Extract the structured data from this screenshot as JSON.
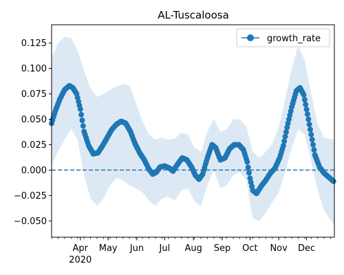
{
  "chart_data": {
    "type": "line",
    "title": "AL-Tuscaloosa",
    "xlabel": "",
    "ylabel": "",
    "x_range": [
      "2020-03-01",
      "2020-12-31"
    ],
    "ylim": [
      -0.066,
      0.143
    ],
    "y_ticks": [
      -0.05,
      -0.025,
      0.0,
      0.025,
      0.05,
      0.075,
      0.1,
      0.125
    ],
    "y_tick_labels": [
      "−0.050",
      "−0.025",
      "0.000",
      "0.025",
      "0.050",
      "0.075",
      "0.100",
      "0.125"
    ],
    "x_ticks": [
      {
        "date": "2020-04-01",
        "label": "Apr"
      },
      {
        "date": "2020-05-01",
        "label": "May"
      },
      {
        "date": "2020-06-01",
        "label": "Jun"
      },
      {
        "date": "2020-07-01",
        "label": "Jul"
      },
      {
        "date": "2020-08-01",
        "label": "Aug"
      },
      {
        "date": "2020-09-01",
        "label": "Sep"
      },
      {
        "date": "2020-10-01",
        "label": "Oct"
      },
      {
        "date": "2020-11-01",
        "label": "Nov"
      },
      {
        "date": "2020-12-01",
        "label": "Dec"
      }
    ],
    "year_label": {
      "date": "2020-04-01",
      "label": "2020"
    },
    "legend": {
      "position": "top-right",
      "entries": [
        "growth_rate"
      ]
    },
    "grid": false,
    "colors": {
      "series": "#1f77b4",
      "band": "#dce9f5",
      "reference": "#1f77b4"
    },
    "reference_line": {
      "y": 0.0,
      "style": "dashed"
    },
    "series": [
      {
        "name": "growth_rate",
        "anchors": [
          [
            "2020-03-01",
            0.046
          ],
          [
            "2020-03-05",
            0.058
          ],
          [
            "2020-03-10",
            0.07
          ],
          [
            "2020-03-15",
            0.079
          ],
          [
            "2020-03-20",
            0.083
          ],
          [
            "2020-03-24",
            0.081
          ],
          [
            "2020-03-28",
            0.075
          ],
          [
            "2020-04-01",
            0.06
          ],
          [
            "2020-04-05",
            0.038
          ],
          [
            "2020-04-10",
            0.024
          ],
          [
            "2020-04-15",
            0.016
          ],
          [
            "2020-04-20",
            0.017
          ],
          [
            "2020-04-25",
            0.024
          ],
          [
            "2020-04-30",
            0.032
          ],
          [
            "2020-05-05",
            0.04
          ],
          [
            "2020-05-10",
            0.045
          ],
          [
            "2020-05-15",
            0.048
          ],
          [
            "2020-05-20",
            0.046
          ],
          [
            "2020-05-25",
            0.038
          ],
          [
            "2020-05-30",
            0.026
          ],
          [
            "2020-06-04",
            0.017
          ],
          [
            "2020-06-09",
            0.01
          ],
          [
            "2020-06-14",
            0.001
          ],
          [
            "2020-06-18",
            -0.004
          ],
          [
            "2020-06-22",
            -0.002
          ],
          [
            "2020-06-26",
            0.003
          ],
          [
            "2020-07-01",
            0.004
          ],
          [
            "2020-07-06",
            0.002
          ],
          [
            "2020-07-10",
            -0.001
          ],
          [
            "2020-07-15",
            0.006
          ],
          [
            "2020-07-20",
            0.012
          ],
          [
            "2020-07-25",
            0.01
          ],
          [
            "2020-07-30",
            0.003
          ],
          [
            "2020-08-03",
            -0.005
          ],
          [
            "2020-08-07",
            -0.009
          ],
          [
            "2020-08-11",
            -0.004
          ],
          [
            "2020-08-16",
            0.012
          ],
          [
            "2020-08-21",
            0.025
          ],
          [
            "2020-08-25",
            0.022
          ],
          [
            "2020-08-30",
            0.01
          ],
          [
            "2020-09-04",
            0.012
          ],
          [
            "2020-09-09",
            0.021
          ],
          [
            "2020-09-14",
            0.025
          ],
          [
            "2020-09-19",
            0.025
          ],
          [
            "2020-09-24",
            0.02
          ],
          [
            "2020-09-28",
            0.008
          ],
          [
            "2020-10-01",
            -0.008
          ],
          [
            "2020-10-04",
            -0.02
          ],
          [
            "2020-10-08",
            -0.023
          ],
          [
            "2020-10-13",
            -0.016
          ],
          [
            "2020-10-18",
            -0.01
          ],
          [
            "2020-10-23",
            -0.003
          ],
          [
            "2020-10-28",
            0.002
          ],
          [
            "2020-11-02",
            0.012
          ],
          [
            "2020-11-06",
            0.024
          ],
          [
            "2020-11-10",
            0.042
          ],
          [
            "2020-11-15",
            0.062
          ],
          [
            "2020-11-20",
            0.078
          ],
          [
            "2020-11-24",
            0.081
          ],
          [
            "2020-11-28",
            0.074
          ],
          [
            "2020-12-02",
            0.055
          ],
          [
            "2020-12-06",
            0.035
          ],
          [
            "2020-12-10",
            0.015
          ],
          [
            "2020-12-15",
            0.003
          ],
          [
            "2020-12-20",
            -0.003
          ],
          [
            "2020-12-25",
            -0.007
          ],
          [
            "2020-12-30",
            -0.011
          ]
        ]
      }
    ],
    "band": {
      "upper": [
        [
          "2020-03-01",
          0.11
        ],
        [
          "2020-03-08",
          0.125
        ],
        [
          "2020-03-15",
          0.131
        ],
        [
          "2020-03-22",
          0.13
        ],
        [
          "2020-03-29",
          0.118
        ],
        [
          "2020-04-05",
          0.098
        ],
        [
          "2020-04-12",
          0.08
        ],
        [
          "2020-04-19",
          0.072
        ],
        [
          "2020-04-26",
          0.075
        ],
        [
          "2020-05-03",
          0.079
        ],
        [
          "2020-05-10",
          0.082
        ],
        [
          "2020-05-17",
          0.085
        ],
        [
          "2020-05-24",
          0.083
        ],
        [
          "2020-05-31",
          0.066
        ],
        [
          "2020-06-07",
          0.048
        ],
        [
          "2020-06-14",
          0.035
        ],
        [
          "2020-06-21",
          0.03
        ],
        [
          "2020-06-28",
          0.032
        ],
        [
          "2020-07-05",
          0.03
        ],
        [
          "2020-07-12",
          0.031
        ],
        [
          "2020-07-19",
          0.037
        ],
        [
          "2020-07-26",
          0.035
        ],
        [
          "2020-08-02",
          0.022
        ],
        [
          "2020-08-09",
          0.018
        ],
        [
          "2020-08-16",
          0.038
        ],
        [
          "2020-08-23",
          0.05
        ],
        [
          "2020-08-30",
          0.038
        ],
        [
          "2020-09-06",
          0.04
        ],
        [
          "2020-09-13",
          0.05
        ],
        [
          "2020-09-20",
          0.05
        ],
        [
          "2020-09-27",
          0.043
        ],
        [
          "2020-10-04",
          0.018
        ],
        [
          "2020-10-11",
          0.012
        ],
        [
          "2020-10-18",
          0.018
        ],
        [
          "2020-10-25",
          0.026
        ],
        [
          "2020-11-01",
          0.042
        ],
        [
          "2020-11-08",
          0.07
        ],
        [
          "2020-11-15",
          0.1
        ],
        [
          "2020-11-22",
          0.122
        ],
        [
          "2020-11-29",
          0.108
        ],
        [
          "2020-12-06",
          0.075
        ],
        [
          "2020-12-13",
          0.045
        ],
        [
          "2020-12-20",
          0.032
        ],
        [
          "2020-12-31",
          0.03
        ]
      ],
      "lower": [
        [
          "2020-03-01",
          0.005
        ],
        [
          "2020-03-08",
          0.018
        ],
        [
          "2020-03-15",
          0.03
        ],
        [
          "2020-03-22",
          0.04
        ],
        [
          "2020-03-29",
          0.03
        ],
        [
          "2020-04-05",
          -0.005
        ],
        [
          "2020-04-12",
          -0.028
        ],
        [
          "2020-04-19",
          -0.035
        ],
        [
          "2020-04-26",
          -0.028
        ],
        [
          "2020-05-03",
          -0.015
        ],
        [
          "2020-05-10",
          -0.008
        ],
        [
          "2020-05-17",
          -0.01
        ],
        [
          "2020-05-24",
          -0.015
        ],
        [
          "2020-05-31",
          -0.018
        ],
        [
          "2020-06-07",
          -0.022
        ],
        [
          "2020-06-14",
          -0.03
        ],
        [
          "2020-06-21",
          -0.035
        ],
        [
          "2020-06-28",
          -0.028
        ],
        [
          "2020-07-05",
          -0.026
        ],
        [
          "2020-07-12",
          -0.03
        ],
        [
          "2020-07-19",
          -0.02
        ],
        [
          "2020-07-26",
          -0.018
        ],
        [
          "2020-08-02",
          -0.03
        ],
        [
          "2020-08-09",
          -0.036
        ],
        [
          "2020-08-16",
          -0.015
        ],
        [
          "2020-08-23",
          0.0
        ],
        [
          "2020-08-30",
          -0.018
        ],
        [
          "2020-09-06",
          -0.015
        ],
        [
          "2020-09-13",
          -0.005
        ],
        [
          "2020-09-20",
          -0.002
        ],
        [
          "2020-09-27",
          -0.01
        ],
        [
          "2020-10-04",
          -0.048
        ],
        [
          "2020-10-11",
          -0.05
        ],
        [
          "2020-10-18",
          -0.042
        ],
        [
          "2020-10-25",
          -0.032
        ],
        [
          "2020-11-01",
          -0.022
        ],
        [
          "2020-11-08",
          -0.002
        ],
        [
          "2020-11-15",
          0.022
        ],
        [
          "2020-11-22",
          0.04
        ],
        [
          "2020-11-29",
          0.035
        ],
        [
          "2020-12-06",
          0.008
        ],
        [
          "2020-12-13",
          -0.02
        ],
        [
          "2020-12-20",
          -0.04
        ],
        [
          "2020-12-31",
          -0.055
        ]
      ]
    }
  }
}
